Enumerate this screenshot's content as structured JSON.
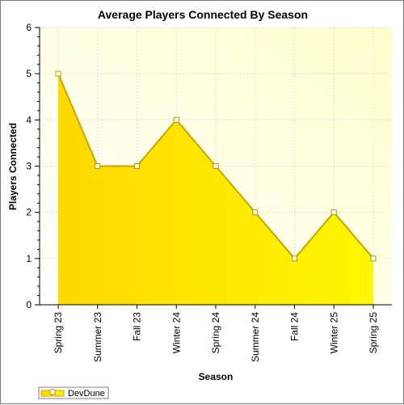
{
  "chart_data": {
    "type": "area",
    "title": "Average Players Connected By Season",
    "xlabel": "Season",
    "ylabel": "Players Connected",
    "categories": [
      "Spring 23",
      "Summer 23",
      "Fall 23",
      "Winter 24",
      "Spring 24",
      "Summer 24",
      "Fall 24",
      "Winter 25",
      "Spring 25"
    ],
    "series": [
      {
        "name": "DevDune",
        "values": [
          5,
          3,
          3,
          4,
          3,
          2,
          1,
          2,
          1
        ]
      }
    ],
    "ylim": [
      0,
      6
    ],
    "yticks": [
      "0",
      "1",
      "2",
      "3",
      "4",
      "5",
      "6"
    ],
    "grid": true,
    "legend_position": "bottom-left",
    "colors": {
      "area_top": "#ffdf00",
      "area_bottom": "#fff700",
      "line": "#c9a400",
      "marker_fill": "#ffffff",
      "marker_stroke": "#b89400",
      "plot_bg_light": "#fffff2",
      "plot_bg_dark": "#ffffc8",
      "grid": "#c8c8c8"
    }
  }
}
